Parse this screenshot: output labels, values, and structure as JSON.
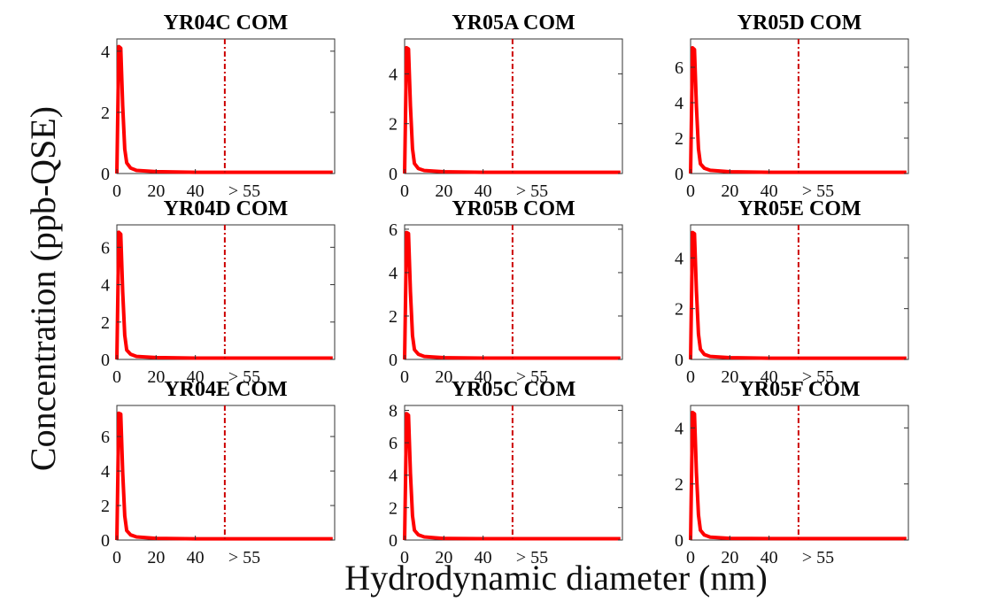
{
  "figure": {
    "xlabel": "Hydrodynamic diameter (nm)",
    "ylabel": "Concentration (ppb-QSE)"
  },
  "colors": {
    "series": "#ff0000",
    "threshold": "#cc0000",
    "axis": "#333333"
  },
  "chart_data": [
    {
      "type": "line",
      "title": "YR04C COM",
      "xticks": [
        "0",
        "20",
        "40",
        "> 55"
      ],
      "x_tick_values": [
        0,
        20,
        40,
        65
      ],
      "xlim": [
        0,
        111
      ],
      "yticks": [
        0,
        2,
        4
      ],
      "ylim": [
        0,
        4.4
      ],
      "threshold_x": 55,
      "series": [
        {
          "x": [
            0,
            1,
            2,
            3,
            4,
            5,
            7,
            10,
            20,
            40,
            55,
            110
          ],
          "y": [
            0,
            4.15,
            4.1,
            2.2,
            0.8,
            0.35,
            0.18,
            0.1,
            0.06,
            0.04,
            0.04,
            0.04
          ]
        }
      ]
    },
    {
      "type": "line",
      "title": "YR05A COM",
      "xticks": [
        "0",
        "20",
        "40",
        "> 55"
      ],
      "x_tick_values": [
        0,
        20,
        40,
        65
      ],
      "xlim": [
        0,
        111
      ],
      "yticks": [
        0,
        2,
        4
      ],
      "ylim": [
        0,
        5.4
      ],
      "threshold_x": 55,
      "series": [
        {
          "x": [
            0,
            1,
            2,
            3,
            4,
            5,
            7,
            10,
            20,
            40,
            55,
            110
          ],
          "y": [
            0,
            5.05,
            5.0,
            2.7,
            1.0,
            0.4,
            0.2,
            0.12,
            0.07,
            0.05,
            0.05,
            0.05
          ]
        }
      ]
    },
    {
      "type": "line",
      "title": "YR05D COM",
      "xticks": [
        "0",
        "20",
        "40",
        "> 55"
      ],
      "x_tick_values": [
        0,
        20,
        40,
        65
      ],
      "xlim": [
        0,
        111
      ],
      "yticks": [
        0,
        2,
        4,
        6
      ],
      "ylim": [
        0,
        7.6
      ],
      "threshold_x": 55,
      "series": [
        {
          "x": [
            0,
            1,
            2,
            3,
            4,
            5,
            7,
            10,
            20,
            40,
            55,
            110
          ],
          "y": [
            0,
            7.1,
            7.0,
            3.8,
            1.4,
            0.55,
            0.3,
            0.18,
            0.1,
            0.07,
            0.07,
            0.07
          ]
        }
      ]
    },
    {
      "type": "line",
      "title": "YR04D COM",
      "xticks": [
        "0",
        "20",
        "40",
        "> 55"
      ],
      "x_tick_values": [
        0,
        20,
        40,
        65
      ],
      "xlim": [
        0,
        111
      ],
      "yticks": [
        0,
        2,
        4,
        6
      ],
      "ylim": [
        0,
        7.2
      ],
      "threshold_x": 55,
      "series": [
        {
          "x": [
            0,
            1,
            2,
            3,
            4,
            5,
            7,
            10,
            20,
            40,
            55,
            110
          ],
          "y": [
            0,
            6.8,
            6.7,
            3.6,
            1.3,
            0.5,
            0.28,
            0.16,
            0.1,
            0.07,
            0.07,
            0.07
          ]
        }
      ]
    },
    {
      "type": "line",
      "title": "YR05B COM",
      "xticks": [
        "0",
        "20",
        "40",
        "> 55"
      ],
      "x_tick_values": [
        0,
        20,
        40,
        65
      ],
      "xlim": [
        0,
        111
      ],
      "yticks": [
        0,
        2,
        4,
        6
      ],
      "ylim": [
        0,
        6.2
      ],
      "threshold_x": 55,
      "series": [
        {
          "x": [
            0,
            1,
            2,
            3,
            4,
            5,
            7,
            10,
            20,
            40,
            55,
            110
          ],
          "y": [
            0,
            5.85,
            5.8,
            3.1,
            1.1,
            0.45,
            0.24,
            0.14,
            0.08,
            0.06,
            0.06,
            0.06
          ]
        }
      ]
    },
    {
      "type": "line",
      "title": "YR05E COM",
      "xticks": [
        "0",
        "20",
        "40",
        "> 55"
      ],
      "x_tick_values": [
        0,
        20,
        40,
        65
      ],
      "xlim": [
        0,
        111
      ],
      "yticks": [
        0,
        2,
        4
      ],
      "ylim": [
        0,
        5.3
      ],
      "threshold_x": 55,
      "series": [
        {
          "x": [
            0,
            1,
            2,
            3,
            4,
            5,
            7,
            10,
            20,
            40,
            55,
            110
          ],
          "y": [
            0,
            5.0,
            4.95,
            2.7,
            1.0,
            0.4,
            0.2,
            0.12,
            0.07,
            0.05,
            0.05,
            0.05
          ]
        }
      ]
    },
    {
      "type": "line",
      "title": "YR04E COM",
      "xticks": [
        "0",
        "20",
        "40",
        "> 55"
      ],
      "x_tick_values": [
        0,
        20,
        40,
        65
      ],
      "xlim": [
        0,
        111
      ],
      "yticks": [
        0,
        2,
        4,
        6
      ],
      "ylim": [
        0,
        7.8
      ],
      "threshold_x": 55,
      "series": [
        {
          "x": [
            0,
            1,
            2,
            3,
            4,
            5,
            7,
            10,
            20,
            40,
            55,
            110
          ],
          "y": [
            0,
            7.35,
            7.3,
            3.9,
            1.4,
            0.55,
            0.3,
            0.18,
            0.1,
            0.07,
            0.07,
            0.07
          ]
        }
      ]
    },
    {
      "type": "line",
      "title": "YR05C COM",
      "xticks": [
        "0",
        "20",
        "40",
        "> 55"
      ],
      "x_tick_values": [
        0,
        20,
        40,
        65
      ],
      "xlim": [
        0,
        111
      ],
      "yticks": [
        0,
        2,
        4,
        6,
        8
      ],
      "ylim": [
        0,
        8.3
      ],
      "threshold_x": 55,
      "series": [
        {
          "x": [
            0,
            1,
            2,
            3,
            4,
            5,
            7,
            10,
            20,
            40,
            55,
            110
          ],
          "y": [
            0,
            7.8,
            7.7,
            4.1,
            1.5,
            0.6,
            0.32,
            0.19,
            0.1,
            0.08,
            0.08,
            0.08
          ]
        }
      ]
    },
    {
      "type": "line",
      "title": "YR05F COM",
      "xticks": [
        "0",
        "20",
        "40",
        "> 55"
      ],
      "x_tick_values": [
        0,
        20,
        40,
        65
      ],
      "xlim": [
        0,
        111
      ],
      "yticks": [
        0,
        2,
        4
      ],
      "ylim": [
        0,
        4.8
      ],
      "threshold_x": 55,
      "series": [
        {
          "x": [
            0,
            1,
            2,
            3,
            4,
            5,
            7,
            10,
            20,
            40,
            55,
            110
          ],
          "y": [
            0,
            4.55,
            4.5,
            2.4,
            0.9,
            0.35,
            0.18,
            0.1,
            0.06,
            0.05,
            0.05,
            0.05
          ]
        }
      ]
    }
  ]
}
